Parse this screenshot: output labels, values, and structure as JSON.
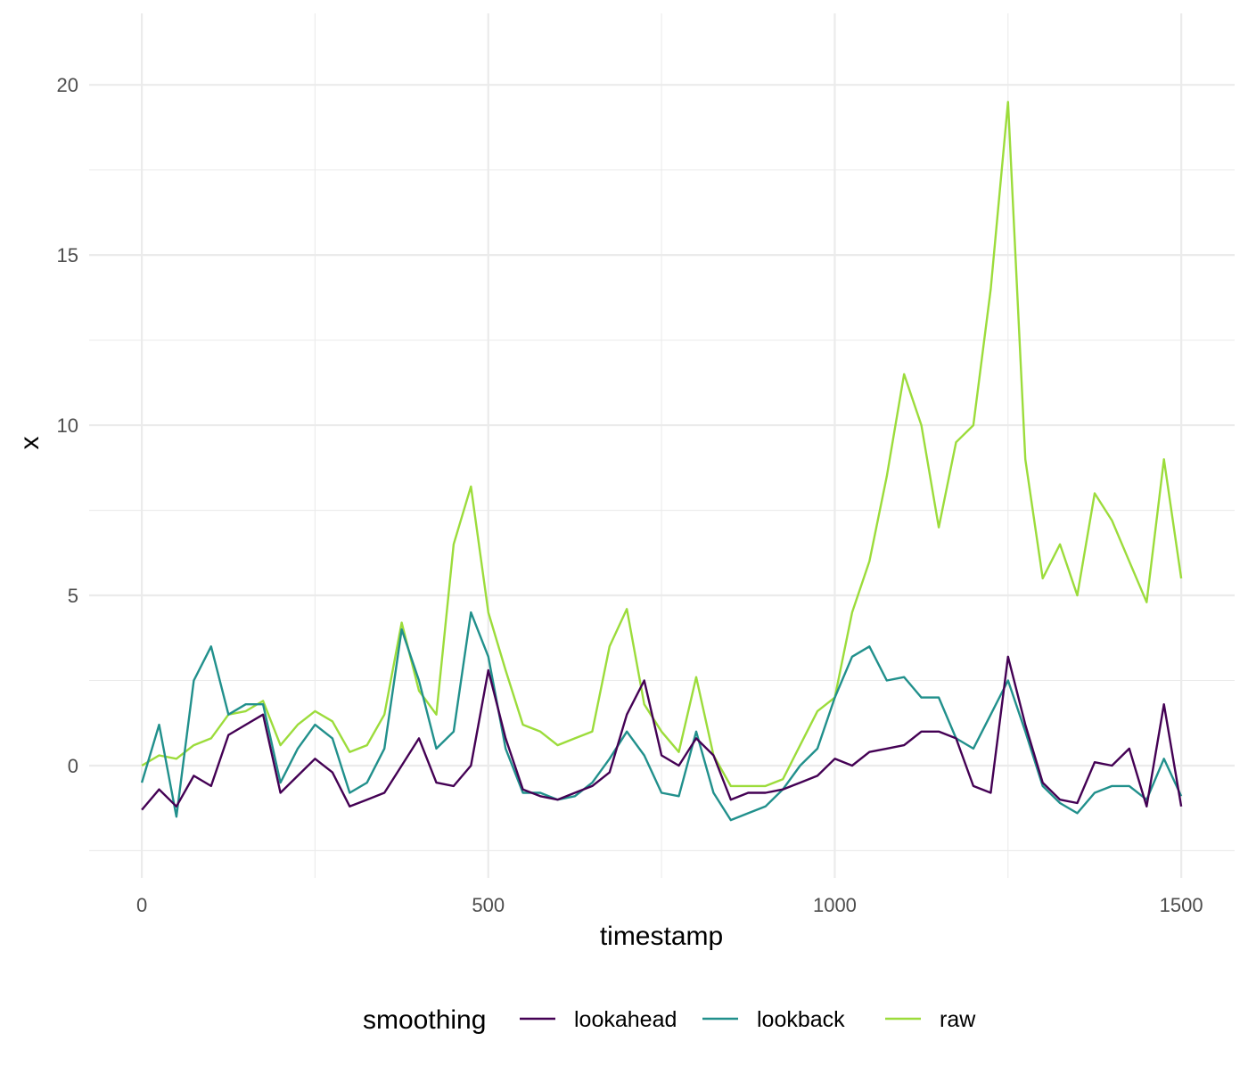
{
  "chart_data": {
    "type": "line",
    "title": "",
    "xlabel": "timestamp",
    "ylabel": "x",
    "xlim": [
      -76,
      1577
    ],
    "ylim": [
      -3.3,
      22.1
    ],
    "xticks": [
      0,
      500,
      1000,
      1500
    ],
    "yticks": [
      0,
      5,
      10,
      15,
      20
    ],
    "grid": true,
    "legend": {
      "title": "smoothing",
      "placement": "bottom"
    },
    "x": [
      0,
      25,
      50,
      75,
      100,
      125,
      150,
      175,
      200,
      225,
      250,
      275,
      300,
      325,
      350,
      375,
      400,
      425,
      450,
      475,
      500,
      525,
      550,
      575,
      600,
      625,
      650,
      675,
      700,
      725,
      750,
      775,
      800,
      825,
      850,
      875,
      900,
      925,
      950,
      975,
      1000,
      1025,
      1050,
      1075,
      1100,
      1125,
      1150,
      1175,
      1200,
      1225,
      1250,
      1275,
      1300,
      1325,
      1350,
      1375,
      1400,
      1425,
      1450,
      1475,
      1500
    ],
    "series": [
      {
        "name": "lookahead",
        "color": "#440154",
        "values": [
          -1.3,
          -0.7,
          -1.2,
          -0.3,
          -0.6,
          0.9,
          1.2,
          1.5,
          -0.8,
          -0.3,
          0.2,
          -0.2,
          -1.2,
          -1.0,
          -0.8,
          0.0,
          0.8,
          -0.5,
          -0.6,
          0.0,
          2.8,
          0.8,
          -0.7,
          -0.9,
          -1.0,
          -0.8,
          -0.6,
          -0.2,
          1.5,
          2.5,
          0.3,
          0.0,
          0.8,
          0.3,
          -1.0,
          -0.8,
          -0.8,
          -0.7,
          -0.5,
          -0.3,
          0.2,
          0.0,
          0.4,
          0.5,
          0.6,
          1.0,
          1.0,
          0.8,
          -0.6,
          -0.8,
          3.2,
          1.2,
          -0.5,
          -1.0,
          -1.1,
          0.1,
          0.0,
          0.5,
          -1.2,
          1.8,
          -1.2
        ]
      },
      {
        "name": "lookback",
        "color": "#21908C",
        "values": [
          -0.5,
          1.2,
          -1.5,
          2.5,
          3.5,
          1.5,
          1.8,
          1.8,
          -0.5,
          0.5,
          1.2,
          0.8,
          -0.8,
          -0.5,
          0.5,
          4.0,
          2.5,
          0.5,
          1.0,
          4.5,
          3.2,
          0.5,
          -0.8,
          -0.8,
          -1.0,
          -0.9,
          -0.5,
          0.2,
          1.0,
          0.3,
          -0.8,
          -0.9,
          1.0,
          -0.8,
          -1.6,
          -1.4,
          -1.2,
          -0.7,
          0.0,
          0.5,
          2.0,
          3.2,
          3.5,
          2.5,
          2.6,
          2.0,
          2.0,
          0.8,
          0.5,
          1.5,
          2.5,
          1.0,
          -0.6,
          -1.1,
          -1.4,
          -0.8,
          -0.6,
          -0.6,
          -1.0,
          0.2,
          -0.9
        ]
      },
      {
        "name": "raw",
        "color": "#9CDC3B",
        "values": [
          0.0,
          0.3,
          0.2,
          0.6,
          0.8,
          1.5,
          1.6,
          1.9,
          0.6,
          1.2,
          1.6,
          1.3,
          0.4,
          0.6,
          1.5,
          4.2,
          2.2,
          1.5,
          6.5,
          8.2,
          4.5,
          2.8,
          1.2,
          1.0,
          0.6,
          0.8,
          1.0,
          3.5,
          4.6,
          1.8,
          1.0,
          0.4,
          2.6,
          0.3,
          -0.6,
          -0.6,
          -0.6,
          -0.4,
          0.6,
          1.6,
          2.0,
          4.5,
          6.0,
          8.5,
          11.5,
          10.0,
          7.0,
          9.5,
          10.0,
          14.0,
          19.5,
          9.0,
          5.5,
          6.5,
          5.0,
          8.0,
          7.2,
          6.0,
          4.8,
          9.0,
          5.5
        ]
      }
    ]
  }
}
